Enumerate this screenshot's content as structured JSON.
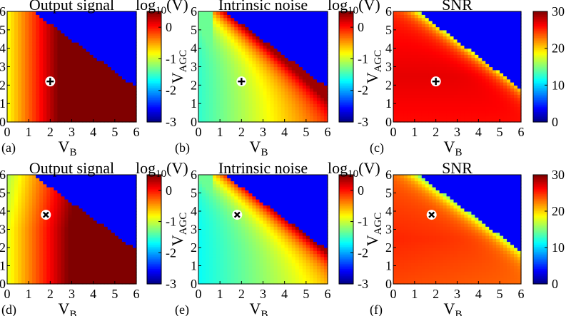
{
  "chart_data": [
    {
      "type": "heatmap",
      "panel": "(a)",
      "kind": "signal",
      "title": "Output signal",
      "xlabel": "V",
      "xlabel_sub": "B",
      "ylabel": "V",
      "ylabel_sub": "AGC",
      "x_ticks": [
        "0",
        "1",
        "2",
        "3",
        "4",
        "5",
        "6"
      ],
      "y_ticks": [
        "0",
        "1",
        "2",
        "3",
        "4",
        "5",
        "6"
      ],
      "xlim": [
        0,
        6
      ],
      "ylim": [
        0,
        6
      ],
      "colorbar": {
        "label": "log",
        "label_sub": "10",
        "label_suffix": "(V)",
        "range": [
          -3,
          0.5
        ],
        "ticks": [
          "0",
          "-1",
          "-2",
          "-3"
        ],
        "colormap": "jet"
      },
      "marker": {
        "symbol": "+",
        "x": 2.0,
        "y": 2.2
      },
      "note": "near-saturated dark red region fills lower-left triangle; dark blue (-3) above diagonal V_B+V_AGC>~7"
    },
    {
      "type": "heatmap",
      "panel": "(b)",
      "kind": "noise",
      "title": "Intrinsic noise",
      "xlabel": "V",
      "xlabel_sub": "B",
      "ylabel": "V",
      "ylabel_sub": "AGC",
      "x_ticks": [
        "0",
        "1",
        "2",
        "3",
        "4",
        "5",
        "6"
      ],
      "y_ticks": [
        "0",
        "1",
        "2",
        "3",
        "4",
        "5",
        "6"
      ],
      "xlim": [
        0,
        6
      ],
      "ylim": [
        0,
        6
      ],
      "colorbar": {
        "label": "log",
        "label_sub": "10",
        "label_suffix": "(V)",
        "range": [
          -3,
          0.5
        ],
        "ticks": [
          "0",
          "-1",
          "-2",
          "-3"
        ],
        "colormap": "jet"
      },
      "marker": {
        "symbol": "+",
        "x": 2.0,
        "y": 2.2
      }
    },
    {
      "type": "heatmap",
      "panel": "(c)",
      "kind": "snr",
      "title": "SNR",
      "xlabel": "V",
      "xlabel_sub": "B",
      "ylabel": "V",
      "ylabel_sub": "AGC",
      "x_ticks": [
        "0",
        "1",
        "2",
        "3",
        "4",
        "5",
        "6"
      ],
      "y_ticks": [
        "0",
        "1",
        "2",
        "3",
        "4",
        "5",
        "6"
      ],
      "xlim": [
        0,
        6
      ],
      "ylim": [
        0,
        6
      ],
      "colorbar": {
        "label": "",
        "range": [
          0,
          30
        ],
        "ticks": [
          "30",
          "20",
          "10",
          "0"
        ],
        "colormap": "jet"
      },
      "marker": {
        "symbol": "+",
        "x": 2.0,
        "y": 2.2
      }
    },
    {
      "type": "heatmap",
      "panel": "(d)",
      "kind": "signal",
      "title": "Output signal",
      "xlabel": "V",
      "xlabel_sub": "B",
      "ylabel": "V",
      "ylabel_sub": "AGC",
      "x_ticks": [
        "0",
        "1",
        "2",
        "3",
        "4",
        "5",
        "6"
      ],
      "y_ticks": [
        "0",
        "1",
        "2",
        "3",
        "4",
        "5",
        "6"
      ],
      "xlim": [
        0,
        6
      ],
      "ylim": [
        0,
        6
      ],
      "colorbar": {
        "label": "log",
        "label_sub": "10",
        "label_suffix": "(V)",
        "range": [
          -3,
          0.5
        ],
        "ticks": [
          "0",
          "-1",
          "-2",
          "-3"
        ],
        "colormap": "jet"
      },
      "marker": {
        "symbol": "x",
        "x": 1.8,
        "y": 3.8
      }
    },
    {
      "type": "heatmap",
      "panel": "(e)",
      "kind": "noise",
      "title": "Intrinsic noise",
      "xlabel": "V",
      "xlabel_sub": "B",
      "ylabel": "V",
      "ylabel_sub": "AGC",
      "x_ticks": [
        "0",
        "1",
        "2",
        "3",
        "4",
        "5",
        "6"
      ],
      "y_ticks": [
        "0",
        "1",
        "2",
        "3",
        "4",
        "5",
        "6"
      ],
      "xlim": [
        0,
        6
      ],
      "ylim": [
        0,
        6
      ],
      "colorbar": {
        "label": "log",
        "label_sub": "10",
        "label_suffix": "(V)",
        "range": [
          -3,
          0.5
        ],
        "ticks": [
          "0",
          "-1",
          "-2",
          "-3"
        ],
        "colormap": "jet"
      },
      "marker": {
        "symbol": "x",
        "x": 1.8,
        "y": 3.8
      }
    },
    {
      "type": "heatmap",
      "panel": "(f)",
      "kind": "snr",
      "title": "SNR",
      "xlabel": "V",
      "xlabel_sub": "B",
      "ylabel": "V",
      "ylabel_sub": "AGC",
      "x_ticks": [
        "0",
        "1",
        "2",
        "3",
        "4",
        "5",
        "6"
      ],
      "y_ticks": [
        "0",
        "1",
        "2",
        "3",
        "4",
        "5",
        "6"
      ],
      "xlim": [
        0,
        6
      ],
      "ylim": [
        0,
        6
      ],
      "colorbar": {
        "label": "",
        "range": [
          0,
          30
        ],
        "ticks": [
          "30",
          "20",
          "10",
          "0"
        ],
        "colormap": "jet"
      },
      "marker": {
        "symbol": "x",
        "x": 1.8,
        "y": 3.8
      }
    }
  ]
}
